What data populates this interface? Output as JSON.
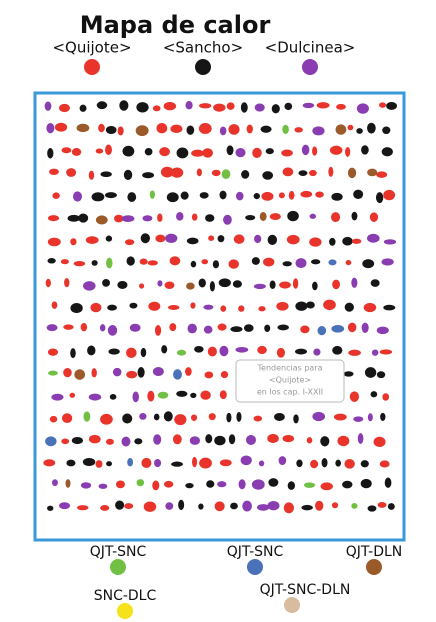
{
  "title": "Mapa de calor",
  "legend": [
    {
      "label": "<Quijote>",
      "color": "#e8342b"
    },
    {
      "label": "<Sancho>",
      "color": "#161616"
    },
    {
      "label": "<Dulcinea>",
      "color": "#8a3db0"
    }
  ],
  "combinations": [
    {
      "label": "QJT-SNC",
      "color": "#72c043"
    },
    {
      "label": "QJT-SNC",
      "color": "#4a72b8"
    },
    {
      "label": "QJT-DLN",
      "color": "#9a5a2a"
    },
    {
      "label": "SNC-DLC",
      "color": "#f5e21a"
    },
    {
      "label": "QJT-SNC-DLN",
      "color": "#d8bca0"
    }
  ],
  "annotation": [
    "Tendencias para",
    "<Quijote>",
    "en los cap. I-XXII"
  ]
}
